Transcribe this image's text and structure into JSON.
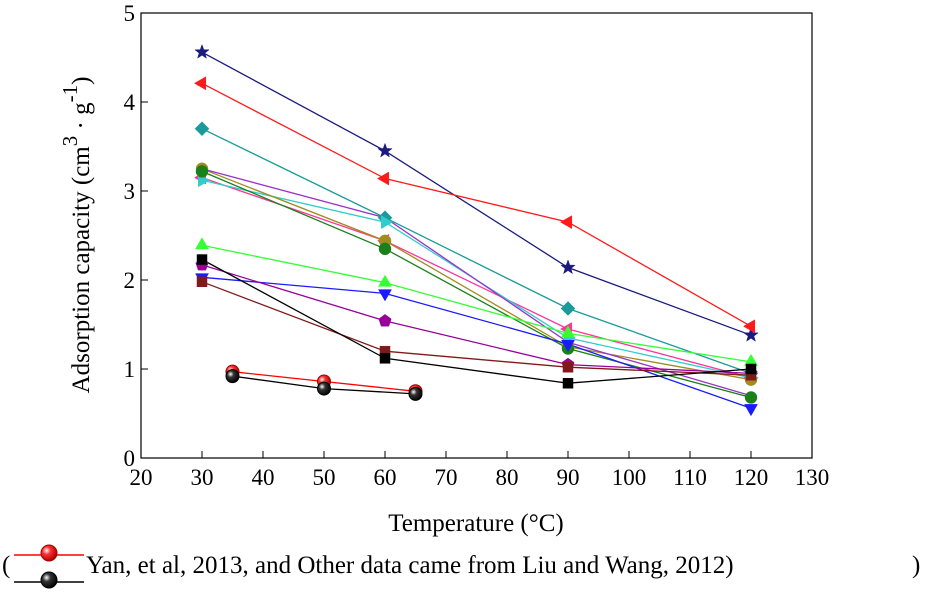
{
  "chart_data": {
    "type": "line",
    "title": "",
    "xlabel": "Temperature (°C)",
    "ylabel_main": "Adsorption capacity (cm",
    "ylabel_sup1": "3",
    "ylabel_mid": " · g",
    "ylabel_sup2": "-1",
    "ylabel_end": ")",
    "xlim": [
      20,
      130
    ],
    "ylim": [
      0,
      5
    ],
    "xticks": [
      20,
      30,
      40,
      50,
      60,
      70,
      80,
      90,
      100,
      110,
      120,
      130
    ],
    "yticks": [
      0,
      1,
      2,
      3,
      4,
      5
    ],
    "legend_text": "Yan, et al, 2013, and Other data came from Liu and Wang, 2012)",
    "legend_open": "(",
    "series": [
      {
        "name": "navy stars",
        "color": "#1a1a80",
        "marker": "star",
        "x": [
          30,
          60,
          90,
          120
        ],
        "y": [
          4.56,
          3.45,
          2.14,
          1.38
        ]
      },
      {
        "name": "red left triangles",
        "color": "#ff1a1a",
        "marker": "triangle-left",
        "x": [
          30,
          60,
          90,
          120
        ],
        "y": [
          4.21,
          3.14,
          2.65,
          1.48
        ]
      },
      {
        "name": "teal diamonds",
        "color": "#1a9a9a",
        "marker": "diamond",
        "x": [
          30,
          60,
          90,
          120
        ],
        "y": [
          3.7,
          2.7,
          1.68,
          0.95
        ]
      },
      {
        "name": "magenta left triangles",
        "color": "#ff3399",
        "marker": "triangle-left",
        "x": [
          30,
          60,
          90,
          120
        ],
        "y": [
          3.15,
          2.44,
          1.45,
          0.9
        ]
      },
      {
        "name": "cyan right triangles",
        "color": "#33cccc",
        "marker": "triangle-right",
        "x": [
          30,
          60,
          90,
          120
        ],
        "y": [
          3.12,
          2.65,
          1.35,
          0.9
        ]
      },
      {
        "name": "olive circles",
        "color": "#a08c20",
        "marker": "circle",
        "x": [
          30,
          60,
          90,
          120
        ],
        "y": [
          3.25,
          2.44,
          1.25,
          0.88
        ]
      },
      {
        "name": "green circles",
        "color": "#1a801a",
        "marker": "circle",
        "x": [
          30,
          60,
          90,
          120
        ],
        "y": [
          3.22,
          2.35,
          1.23,
          0.68
        ]
      },
      {
        "name": "violet line",
        "color": "#9933cc",
        "marker": "none",
        "x": [
          30,
          60,
          90,
          120
        ],
        "y": [
          3.25,
          2.7,
          1.3,
          0.7
        ]
      },
      {
        "name": "lime triangles",
        "color": "#33ff33",
        "marker": "triangle-up",
        "x": [
          30,
          60,
          90,
          120
        ],
        "y": [
          2.39,
          1.97,
          1.4,
          1.08
        ]
      },
      {
        "name": "blue down triangles",
        "color": "#1a1aff",
        "marker": "triangle-down",
        "x": [
          30,
          60,
          90,
          120
        ],
        "y": [
          2.03,
          1.85,
          1.28,
          0.56
        ]
      },
      {
        "name": "purple pentagons",
        "color": "#990099",
        "marker": "pentagon",
        "x": [
          30,
          60,
          90,
          120
        ],
        "y": [
          2.17,
          1.54,
          1.05,
          0.95
        ]
      },
      {
        "name": "dark red squares",
        "color": "#801a1a",
        "marker": "square",
        "x": [
          30,
          60,
          90,
          120
        ],
        "y": [
          1.98,
          1.2,
          1.02,
          0.93
        ]
      },
      {
        "name": "black squares",
        "color": "#000000",
        "marker": "square",
        "x": [
          30,
          60,
          90,
          120
        ],
        "y": [
          2.23,
          1.12,
          0.84,
          1.0
        ]
      },
      {
        "name": "Yan red spheres",
        "color": "#ff0000",
        "marker": "sphere",
        "x": [
          35,
          50,
          65
        ],
        "y": [
          0.97,
          0.86,
          0.75
        ]
      },
      {
        "name": "Yan black spheres",
        "color": "#000000",
        "marker": "sphere",
        "x": [
          35,
          50,
          65
        ],
        "y": [
          0.92,
          0.78,
          0.72
        ]
      }
    ]
  }
}
